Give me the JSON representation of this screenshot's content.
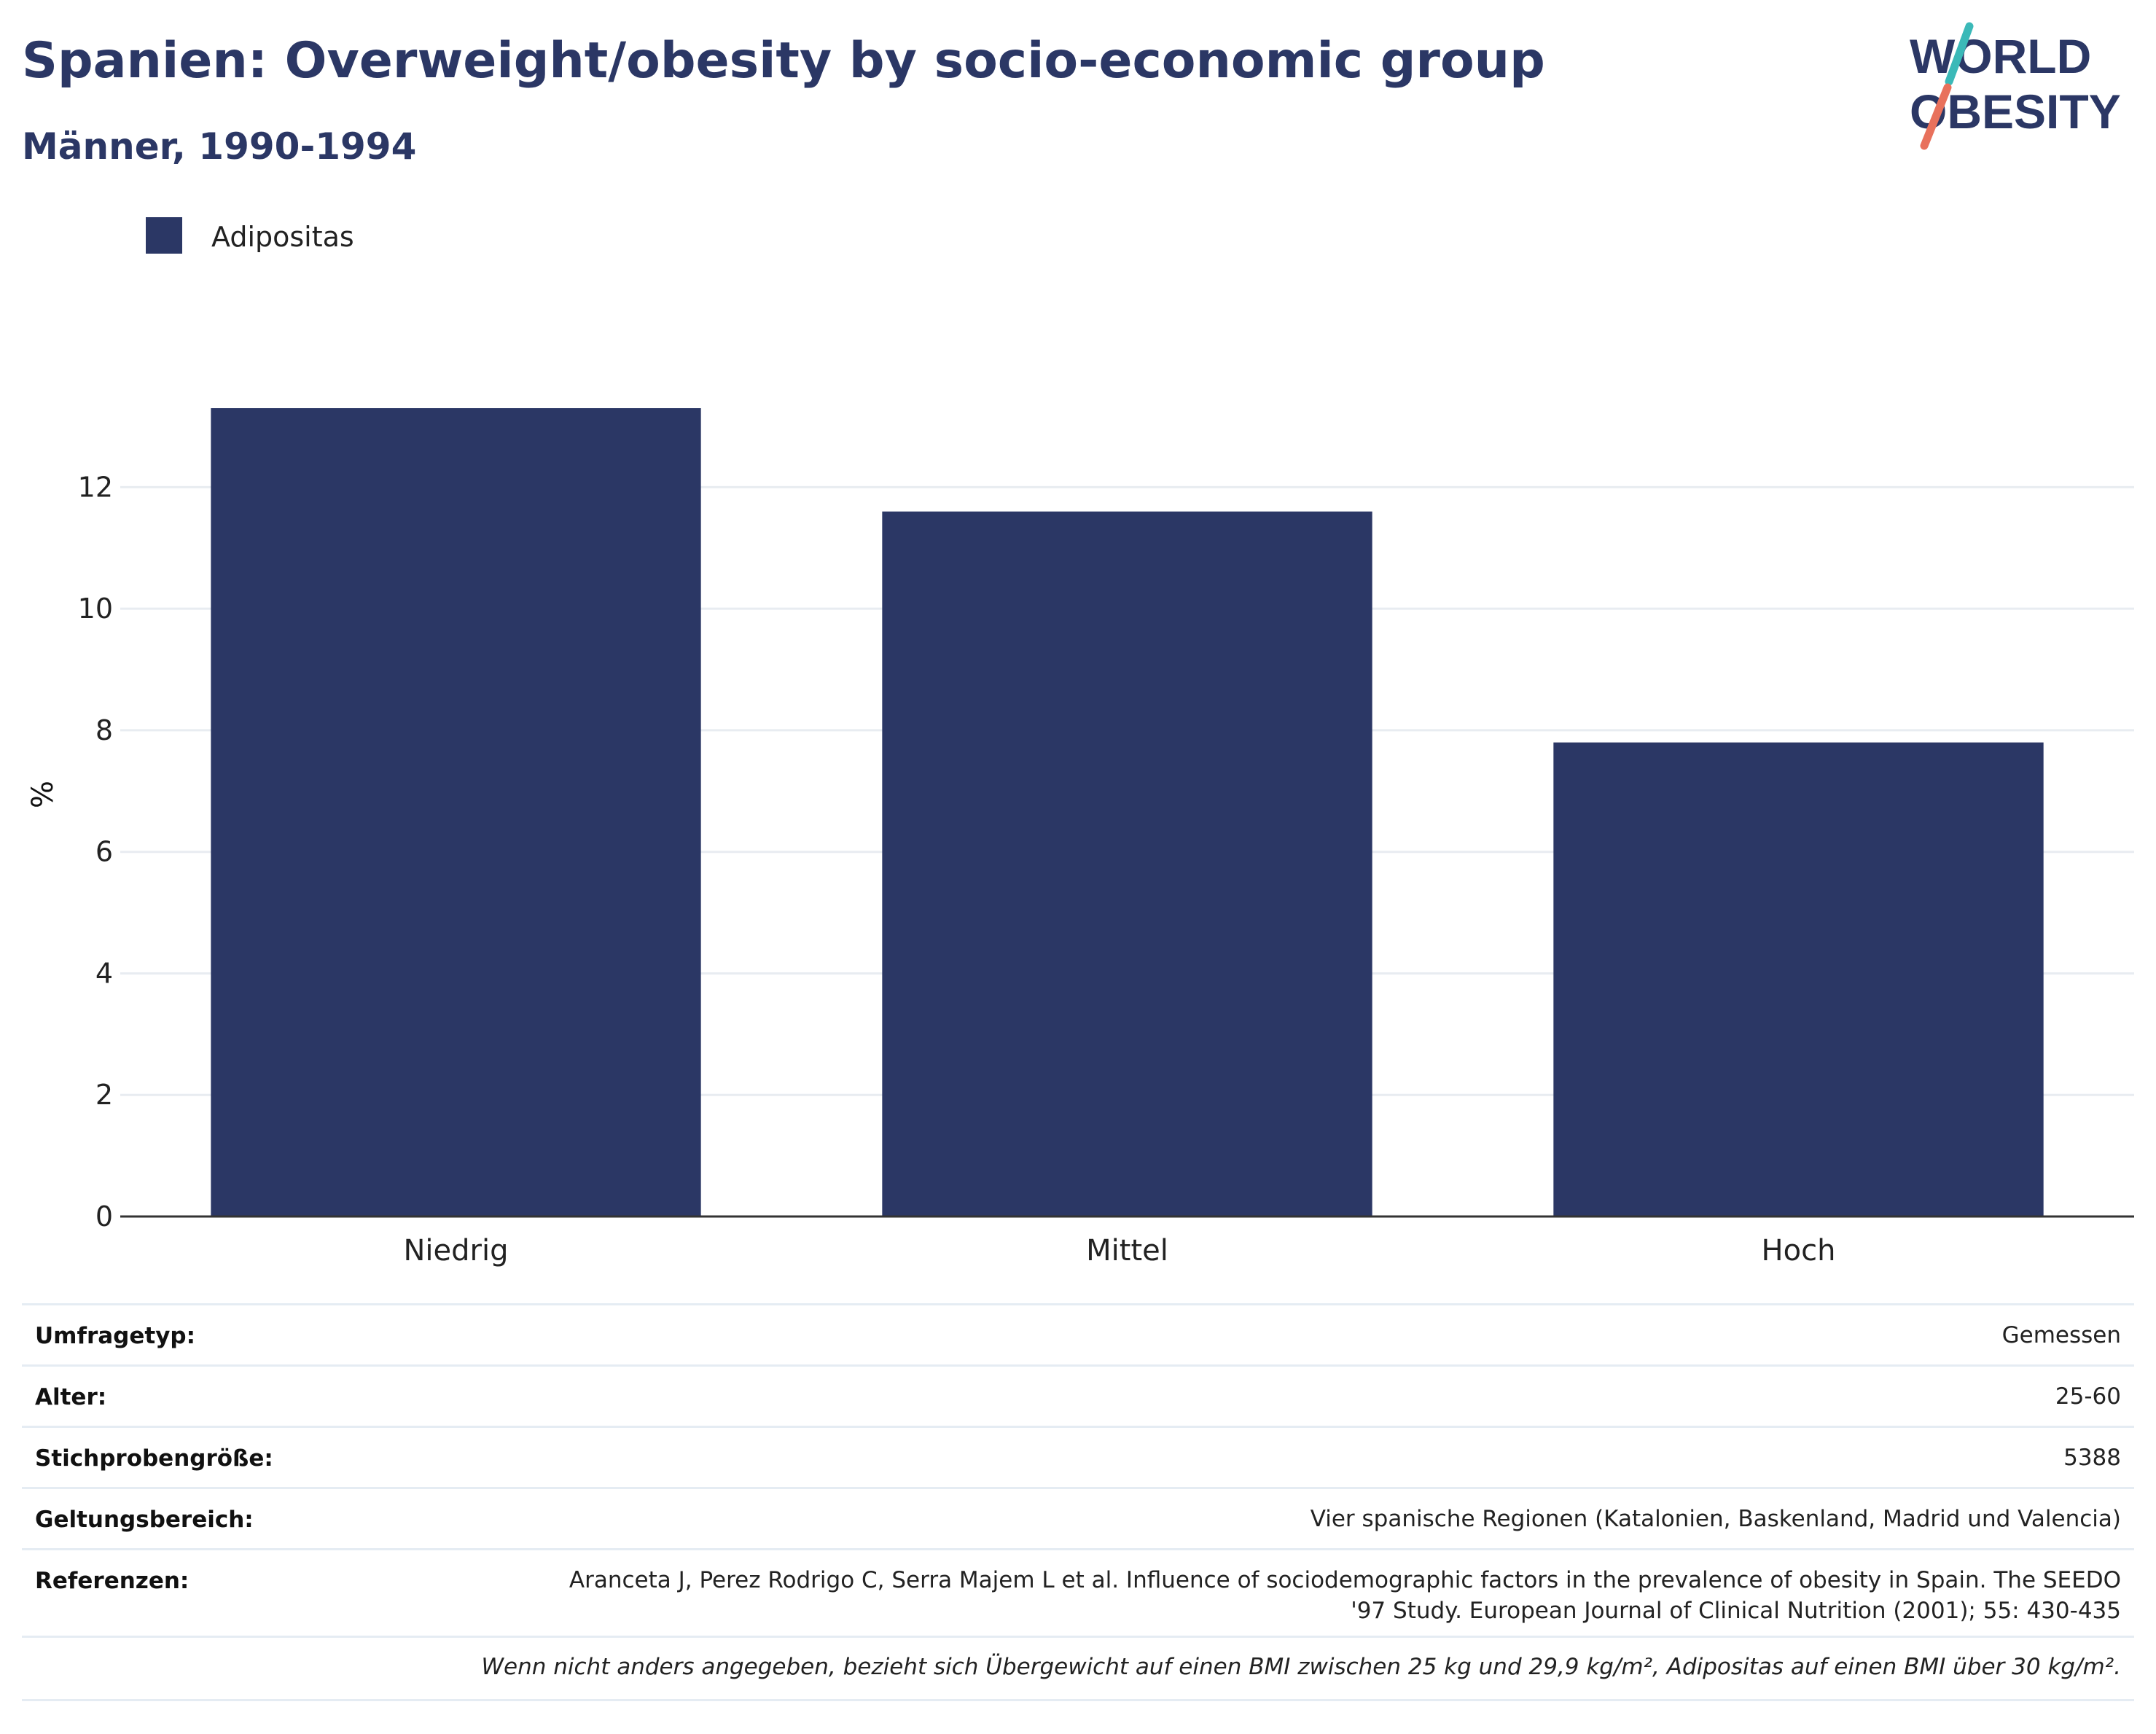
{
  "header": {
    "title": "Spanien: Overweight/obesity by socio-economic group",
    "subtitle": "Männer, 1990-1994"
  },
  "logo": {
    "line1": "WORLD",
    "line2": "OBESITY",
    "colors": {
      "text": "#2b3765",
      "slash_top": "#3bb9b8",
      "slash_bottom": "#e8715c"
    }
  },
  "chart_data": {
    "type": "bar",
    "categories": [
      "Niedrig",
      "Mittel",
      "Hoch"
    ],
    "series": [
      {
        "name": "Adipositas",
        "values": [
          13.3,
          11.6,
          7.8
        ],
        "color": "#2b3765"
      }
    ],
    "xlabel": "",
    "ylabel": "%",
    "ylim": [
      0,
      13.3
    ],
    "yticks": [
      0,
      2,
      4,
      6,
      8,
      10,
      12
    ],
    "grid": true,
    "legend_position": "top-left"
  },
  "info": [
    {
      "label": "Umfragetyp:",
      "value": "Gemessen"
    },
    {
      "label": "Alter:",
      "value": "25-60"
    },
    {
      "label": "Stichprobengröße:",
      "value": "5388"
    },
    {
      "label": "Geltungsbereich:",
      "value": "Vier spanische Regionen (Katalonien, Baskenland, Madrid und Valencia)"
    },
    {
      "label": "Referenzen:",
      "value_line1": "Aranceta J, Perez Rodrigo C, Serra Majem L et al. Influence of sociodemographic factors in the prevalence of obesity in Spain. The SEEDO",
      "value_line2": "'97 Study. European Journal of Clinical Nutrition (2001); 55: 430-435"
    }
  ],
  "footnote": "Wenn nicht anders angegeben, bezieht sich Übergewicht auf einen BMI zwischen 25 kg und 29,9 kg/m², Adipositas auf einen BMI über 30 kg/m²."
}
